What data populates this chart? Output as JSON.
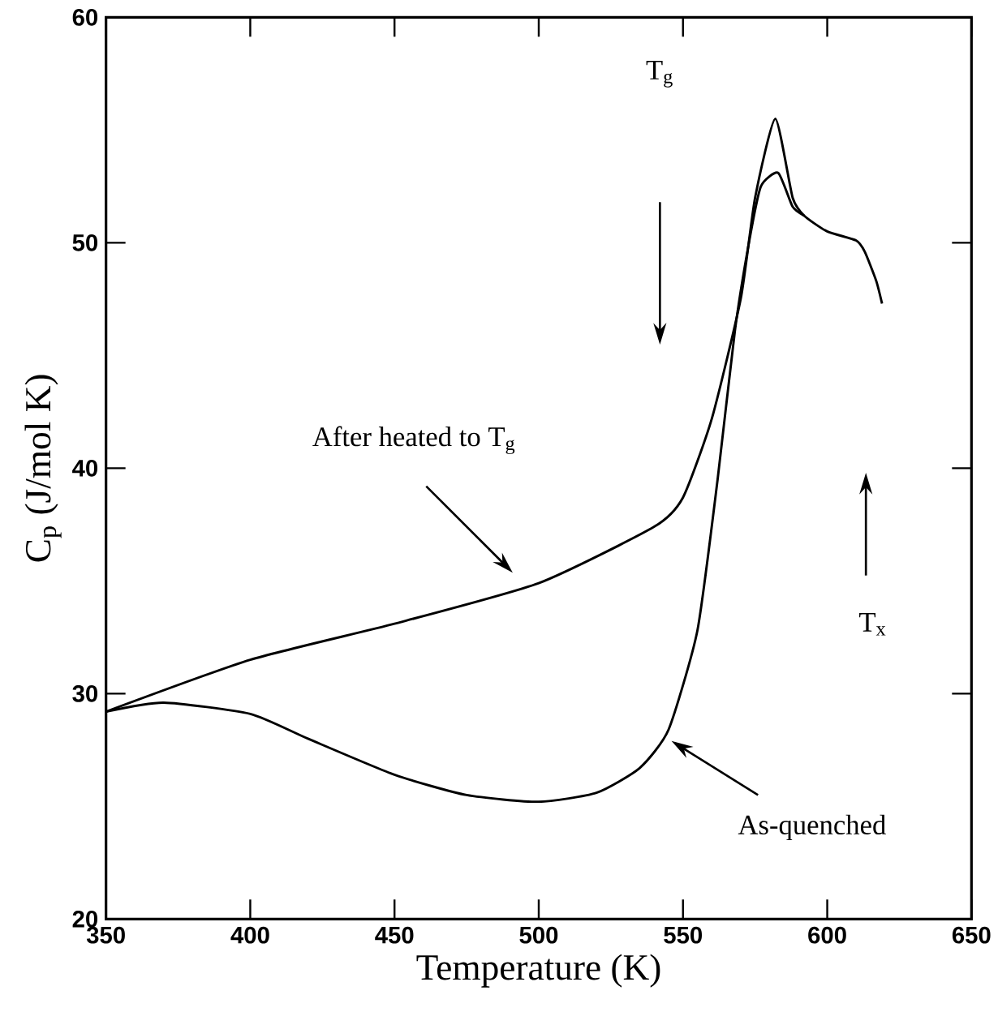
{
  "chart_data": {
    "type": "line",
    "xlabel": "Temperature (K)",
    "ylabel": "C$_{p}$ (J/mol K)",
    "xlim": [
      350,
      650
    ],
    "ylim": [
      20,
      60
    ],
    "xticks": [
      350,
      400,
      450,
      500,
      550,
      600,
      650
    ],
    "yticks": [
      20,
      30,
      40,
      50,
      60
    ],
    "grid": false,
    "marker": "none",
    "line_style": "solid",
    "series": [
      {
        "color": "#000000",
        "x": [
          350,
          400,
          450,
          500,
          540,
          550,
          560,
          570,
          575,
          582,
          588,
          592,
          600,
          610,
          613,
          617,
          619
        ],
        "values": [
          29.2,
          31.5,
          33.1,
          34.9,
          37.4,
          38.7,
          42.2,
          47.5,
          52.0,
          55.5,
          52.0,
          51.2,
          50.5,
          50.1,
          49.6,
          48.3,
          47.3
        ]
      },
      {
        "color": "#000000",
        "x": [
          350,
          370,
          400,
          420,
          450,
          475,
          500,
          520,
          535,
          545,
          555,
          562,
          568,
          573,
          577,
          583,
          588,
          592
        ],
        "values": [
          29.2,
          29.6,
          29.1,
          28.0,
          26.4,
          25.5,
          25.2,
          25.6,
          26.7,
          28.4,
          32.8,
          39.5,
          46.1,
          50.1,
          52.5,
          53.1,
          51.6,
          51.2
        ]
      }
    ],
    "annotations": [
      "After heated to T$_{g}$",
      "T$_{g}$",
      "T$_{x}$",
      {
        "text": "As-quenched",
        "x": 546,
        "y": 27.9
      }
    ]
  }
}
